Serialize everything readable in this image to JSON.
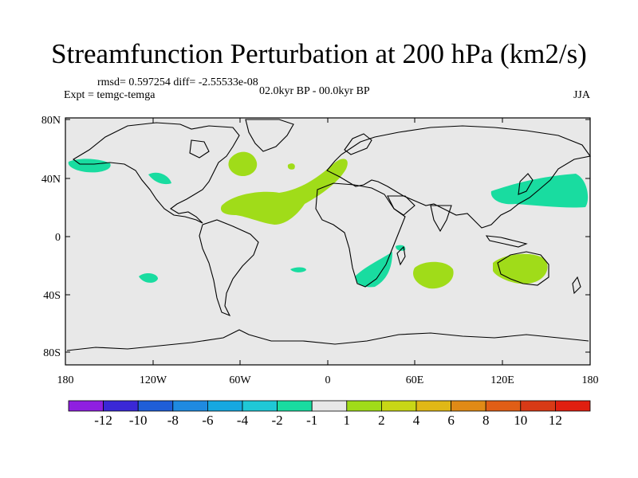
{
  "title": "Streamfunction Perturbation at 200 hPa (km2/s)",
  "stats": "rmsd= 0.597254 diff= -2.55533e-08",
  "experiment": "Expt = temgc-temga",
  "period": "02.0kyr BP - 00.0kyr BP",
  "season": "JJA",
  "lat_ticks": [
    "80N",
    "40N",
    "0",
    "40S",
    "80S"
  ],
  "lon_ticks": [
    "180",
    "120W",
    "60W",
    "0",
    "60E",
    "120E",
    "180"
  ],
  "colorbar": {
    "labels": [
      "-12",
      "-10",
      "-8",
      "-6",
      "-4",
      "-2",
      "-1",
      "1",
      "2",
      "4",
      "6",
      "8",
      "10",
      "12"
    ],
    "colors": [
      "#8f1fe0",
      "#3a28d6",
      "#1f5ed8",
      "#1f8ae0",
      "#16a8e0",
      "#1fc8d6",
      "#19dca0",
      "#e8e8e8",
      "#a0dc19",
      "#c8d616",
      "#e0b816",
      "#e08a16",
      "#e05e16",
      "#d83a16",
      "#e01f10"
    ]
  },
  "colors": {
    "ocean_background": "#e8e8e8",
    "positive_anomaly": "#a0dc19",
    "negative_anomaly": "#19dca0"
  }
}
